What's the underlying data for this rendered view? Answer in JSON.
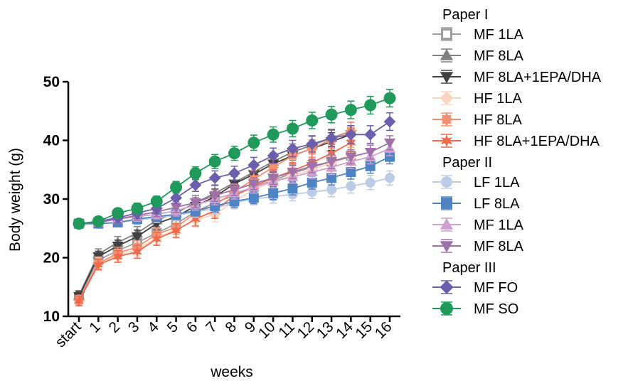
{
  "chart_data": {
    "type": "line",
    "xlabel": "weeks",
    "ylabel": "Body weight  (g)",
    "ylim": [
      10,
      50
    ],
    "yticks": [
      10,
      20,
      30,
      40,
      50
    ],
    "categories": [
      "start",
      "1",
      "2",
      "3",
      "4",
      "5",
      "6",
      "7",
      "8",
      "9",
      "10",
      "11",
      "12",
      "13",
      "14",
      "15",
      "16"
    ],
    "legend_position": "right",
    "groups": [
      {
        "title": "Paper I",
        "series": [
          {
            "name": "MF 1LA",
            "color": "#9e9e9e",
            "marker": "square-open",
            "values": [
              13.2,
              19.6,
              21.2,
              22.6,
              24.2,
              25.8,
              27.8,
              29.4,
              30.6,
              32.0,
              33.2,
              34.4,
              35.4,
              36.4,
              37.4
            ],
            "err": [
              0.8,
              0.9,
              1.0,
              1.0,
              1.1,
              1.1,
              1.2,
              1.2,
              1.3,
              1.3,
              1.3,
              1.4,
              1.4,
              1.4,
              1.4
            ]
          },
          {
            "name": "MF 8LA",
            "color": "#808080",
            "marker": "triangle-up",
            "values": [
              13.6,
              20.6,
              22.6,
              24.2,
              26.4,
              27.6,
              29.4,
              31.0,
              32.8,
              34.6,
              36.4,
              38.0,
              39.2,
              40.4,
              41.6
            ],
            "err": [
              0.8,
              0.9,
              1.0,
              1.1,
              1.1,
              1.2,
              1.2,
              1.3,
              1.3,
              1.4,
              1.4,
              1.4,
              1.5,
              1.5,
              1.5
            ]
          },
          {
            "name": "MF 8LA+1EPA/DHA",
            "color": "#404040",
            "marker": "triangle-down",
            "values": [
              13.4,
              20.2,
              22.0,
              23.6,
              25.8,
              27.0,
              28.8,
              30.4,
              32.6,
              34.2,
              36.0,
              37.4,
              38.6,
              39.8,
              41.0
            ],
            "err": [
              0.8,
              0.9,
              1.0,
              1.1,
              1.1,
              1.2,
              1.2,
              1.3,
              1.3,
              1.4,
              1.4,
              1.4,
              1.5,
              1.5,
              1.5
            ]
          },
          {
            "name": "HF 1LA",
            "color": "#fbd5c2",
            "marker": "diamond",
            "values": [
              12.6,
              19.2,
              20.4,
              21.4,
              23.4,
              24.8,
              26.4,
              27.4,
              29.6,
              31.6,
              33.0,
              34.0,
              35.0,
              36.2,
              37.2
            ],
            "err": [
              0.8,
              0.9,
              1.0,
              1.1,
              1.1,
              1.2,
              1.2,
              1.3,
              1.3,
              1.4,
              1.4,
              1.4,
              1.5,
              1.5,
              1.5
            ]
          },
          {
            "name": "HF 8LA",
            "color": "#f29074",
            "marker": "flower",
            "values": [
              12.8,
              19.0,
              20.8,
              21.8,
              24.0,
              25.2,
              27.6,
              29.0,
              31.2,
              33.4,
              35.4,
              37.4,
              38.6,
              40.2,
              41.6
            ],
            "err": [
              0.8,
              0.9,
              1.0,
              1.1,
              1.1,
              1.2,
              1.2,
              1.3,
              1.3,
              1.4,
              1.4,
              1.4,
              1.5,
              1.5,
              1.5
            ]
          },
          {
            "name": "HF 8LA+1EPA/DHA",
            "color": "#ef6a4a",
            "marker": "star",
            "values": [
              12.6,
              18.8,
              20.2,
              21.0,
              23.2,
              24.6,
              26.6,
              28.0,
              30.6,
              32.2,
              33.6,
              34.8,
              36.2,
              37.8,
              39.6
            ],
            "err": [
              0.8,
              0.9,
              1.0,
              1.1,
              1.1,
              1.2,
              1.2,
              1.3,
              1.3,
              1.4,
              1.4,
              1.4,
              1.5,
              1.5,
              1.5
            ]
          }
        ]
      },
      {
        "title": "Paper II",
        "series": [
          {
            "name": "LF 1LA",
            "color": "#bccce6",
            "marker": "circle",
            "values": [
              25.6,
              25.8,
              26.0,
              26.4,
              26.8,
              27.2,
              27.8,
              28.4,
              29.4,
              30.0,
              30.4,
              30.8,
              31.2,
              31.6,
              32.2,
              32.8,
              33.6
            ],
            "err": [
              0.6,
              0.7,
              0.7,
              0.8,
              0.8,
              0.9,
              0.9,
              1.0,
              1.0,
              1.0,
              1.1,
              1.1,
              1.1,
              1.2,
              1.2,
              1.2,
              1.2
            ]
          },
          {
            "name": "LF 8LA",
            "color": "#4e84c4",
            "marker": "square",
            "values": [
              25.8,
              25.8,
              26.0,
              26.6,
              27.0,
              27.4,
              28.0,
              28.8,
              29.6,
              30.2,
              31.0,
              31.8,
              32.8,
              33.6,
              34.6,
              35.6,
              37.2
            ],
            "err": [
              0.6,
              0.7,
              0.7,
              0.8,
              0.8,
              0.9,
              0.9,
              1.0,
              1.0,
              1.0,
              1.1,
              1.1,
              1.1,
              1.2,
              1.2,
              1.2,
              1.2
            ]
          },
          {
            "name": "MF 1LA",
            "color": "#cfa0cf",
            "marker": "triangle-up",
            "values": [
              25.8,
              26.0,
              26.6,
              27.0,
              27.4,
              28.0,
              29.0,
              30.0,
              31.0,
              32.0,
              33.0,
              33.8,
              34.6,
              35.4,
              36.4,
              37.2,
              38.6
            ],
            "err": [
              0.6,
              0.7,
              0.7,
              0.8,
              0.8,
              0.9,
              0.9,
              1.0,
              1.0,
              1.0,
              1.1,
              1.1,
              1.1,
              1.2,
              1.2,
              1.2,
              1.2
            ]
          },
          {
            "name": "MF 8LA",
            "color": "#a070a8",
            "marker": "triangle-down",
            "values": [
              25.8,
              26.0,
              26.6,
              27.2,
              27.8,
              28.6,
              29.4,
              30.6,
              31.6,
              32.6,
              33.6,
              34.6,
              35.6,
              36.4,
              37.2,
              38.0,
              39.6
            ],
            "err": [
              0.6,
              0.7,
              0.7,
              0.8,
              0.8,
              0.9,
              0.9,
              1.0,
              1.0,
              1.0,
              1.1,
              1.1,
              1.1,
              1.2,
              1.2,
              1.2,
              1.2
            ]
          }
        ]
      },
      {
        "title": "Paper III",
        "series": [
          {
            "name": "MF FO",
            "color": "#6b5fad",
            "marker": "diamond",
            "values": [
              25.8,
              26.2,
              26.8,
              27.6,
              28.4,
              30.2,
              32.4,
              33.6,
              34.4,
              35.8,
              37.4,
              38.6,
              39.4,
              40.4,
              41.0,
              41.0,
              43.2
            ],
            "err": [
              0.6,
              0.7,
              0.8,
              0.9,
              0.9,
              1.0,
              1.1,
              1.2,
              1.2,
              1.3,
              1.3,
              1.4,
              1.4,
              1.4,
              1.5,
              1.5,
              1.5
            ]
          },
          {
            "name": "MF SO",
            "color": "#1f9a5a",
            "marker": "circle",
            "values": [
              25.8,
              26.2,
              27.6,
              28.4,
              29.6,
              32.0,
              34.4,
              36.4,
              37.8,
              39.6,
              41.0,
              42.0,
              43.4,
              44.4,
              45.2,
              46.0,
              47.2
            ],
            "err": [
              0.6,
              0.7,
              0.8,
              0.9,
              0.9,
              1.0,
              1.1,
              1.2,
              1.2,
              1.3,
              1.3,
              1.4,
              1.4,
              1.4,
              1.5,
              1.5,
              1.5
            ]
          }
        ]
      }
    ]
  }
}
